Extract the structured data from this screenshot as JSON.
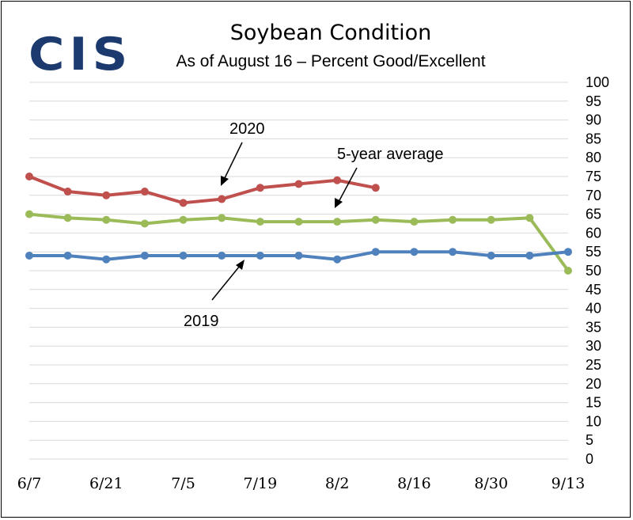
{
  "logo": {
    "text": "CIS"
  },
  "chart_data": {
    "type": "line",
    "title": "Soybean Condition",
    "subtitle": "As of August 16 – Percent Good/Excellent",
    "xlabel": "",
    "ylabel": "",
    "ylim": [
      0,
      100
    ],
    "ytick_step": 5,
    "y_axis_side": "right",
    "grid": true,
    "x_tick_labels": [
      "6/7",
      "6/21",
      "7/5",
      "7/19",
      "8/2",
      "8/16",
      "8/30",
      "9/13"
    ],
    "x": [
      "6/7",
      "6/14",
      "6/21",
      "6/28",
      "7/5",
      "7/12",
      "7/19",
      "7/26",
      "8/2",
      "8/9",
      "8/16",
      "8/23",
      "8/30",
      "9/6",
      "9/13"
    ],
    "series": [
      {
        "name": "2020",
        "color": "#c0504d",
        "values": [
          75,
          71,
          70,
          71,
          68,
          69,
          72,
          73,
          74,
          72,
          null,
          null,
          null,
          null,
          null
        ]
      },
      {
        "name": "5-year average",
        "color": "#9bbb59",
        "values": [
          65,
          64,
          63.5,
          62.5,
          63.5,
          64,
          63,
          63,
          63,
          63.5,
          63,
          63.5,
          63.5,
          64,
          50
        ]
      },
      {
        "name": "2019",
        "color": "#4f81bd",
        "values": [
          54,
          54,
          53,
          54,
          54,
          54,
          54,
          54,
          53,
          55,
          55,
          55,
          54,
          54,
          55
        ]
      }
    ]
  }
}
